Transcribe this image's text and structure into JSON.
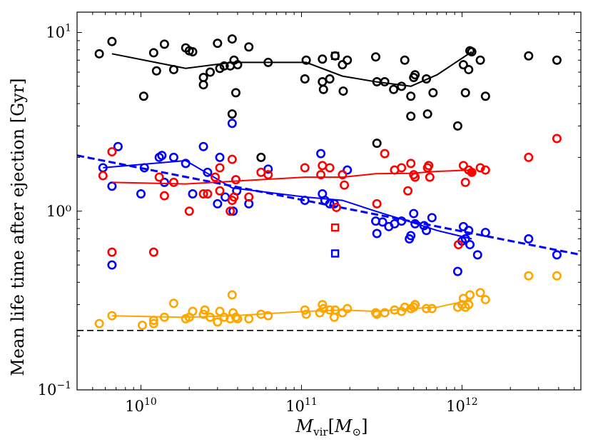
{
  "chart_data": {
    "type": "scatter",
    "xscale": "log",
    "yscale": "log",
    "xlim": [
      4000000000.0,
      5500000000000.0
    ],
    "ylim": [
      0.1,
      13
    ],
    "ylabel": "Mean life time after ejection [Gyr]",
    "xlabel": {
      "main": "M",
      "main_sub": "vir",
      "unit": "M",
      "unit_sub": "⊙"
    },
    "x_ticks": [
      {
        "value": 10000000000.0,
        "base": "10",
        "exp": "10"
      },
      {
        "value": 100000000000.0,
        "base": "10",
        "exp": "11"
      },
      {
        "value": 1000000000000.0,
        "base": "10",
        "exp": "12"
      }
    ],
    "y_ticks": [
      {
        "value": 0.1,
        "base": "10",
        "exp": "−1"
      },
      {
        "value": 1,
        "text": "10⁰"
      },
      {
        "value": 10,
        "base": "10",
        "exp": "1"
      }
    ],
    "reference_lines": [
      {
        "name": "horizontal-dashed",
        "type": "hline",
        "y": 0.215,
        "color": "#000000",
        "dash": "9,5"
      },
      {
        "name": "blue-dashed-fit",
        "type": "line",
        "points": [
          [
            4000000000.0,
            2.05
          ],
          [
            5500000000000.0,
            0.57
          ]
        ],
        "color": "#0000ff",
        "dash": "10,5"
      }
    ],
    "series": [
      {
        "name": "black",
        "color": "#000000",
        "points": [
          [
            5500000000.0,
            7.6
          ],
          [
            6600000000.0,
            8.9
          ],
          [
            10400000000.0,
            4.4
          ],
          [
            12000000000.0,
            7.7
          ],
          [
            12500000000.0,
            6.1
          ],
          [
            14000000000.0,
            8.6
          ],
          [
            16000000000.0,
            6.2
          ],
          [
            19000000000.0,
            8.2
          ],
          [
            20000000000.0,
            7.9
          ],
          [
            21000000000.0,
            7.8
          ],
          [
            24500000000.0,
            5.1
          ],
          [
            24500000000.0,
            5.6
          ],
          [
            27000000000.0,
            6.0
          ],
          [
            30000000000.0,
            8.7
          ],
          [
            31000000000.0,
            6.3
          ],
          [
            33000000000.0,
            6.5
          ],
          [
            36000000000.0,
            6.5
          ],
          [
            37000000000.0,
            9.2
          ],
          [
            38000000000.0,
            7.0
          ],
          [
            37000000000.0,
            3.5
          ],
          [
            39000000000.0,
            4.6
          ],
          [
            40000000000.0,
            6.6
          ],
          [
            47000000000.0,
            8.3
          ],
          [
            62000000000.0,
            6.8
          ],
          [
            105000000000.0,
            5.5
          ],
          [
            107000000000.0,
            7.0
          ],
          [
            135000000000.0,
            7.1
          ],
          [
            135000000000.0,
            5.3
          ],
          [
            137000000000.0,
            4.8
          ],
          [
            150000000000.0,
            5.5
          ],
          [
            162000000000.0,
            7.4
          ],
          [
            180000000000.0,
            6.6
          ],
          [
            182000000000.0,
            4.7
          ],
          [
            193000000000.0,
            7.0
          ],
          [
            290000000000.0,
            7.3
          ],
          [
            295000000000.0,
            5.3
          ],
          [
            330000000000.0,
            5.3
          ],
          [
            375000000000.0,
            4.8
          ],
          [
            420000000000.0,
            5.0
          ],
          [
            440000000000.0,
            7.0
          ],
          [
            480000000000.0,
            4.4
          ],
          [
            480000000000.0,
            3.4
          ],
          [
            500000000000.0,
            5.6
          ],
          [
            510000000000.0,
            5.8
          ],
          [
            600000000000.0,
            5.5
          ],
          [
            610000000000.0,
            3.5
          ],
          [
            660000000000.0,
            4.6
          ],
          [
            940000000000.0,
            3.0
          ],
          [
            1020000000000.0,
            6.6
          ],
          [
            1050000000000.0,
            4.6
          ],
          [
            1100000000000.0,
            6.2
          ],
          [
            1120000000000.0,
            7.9
          ],
          [
            1150000000000.0,
            7.8
          ],
          [
            1300000000000.0,
            7.0
          ],
          [
            1400000000000.0,
            4.4
          ],
          [
            2600000000000.0,
            7.4
          ],
          [
            3900000000000.0,
            7.0
          ],
          [
            295000000000.0,
            2.4
          ],
          [
            56000000000.0,
            2.0
          ]
        ],
        "squares": [
          [
            162000000000.0,
            7.4
          ]
        ],
        "median_line": [
          [
            6600000000.0,
            7.6
          ],
          [
            19000000000.0,
            6.3
          ],
          [
            37000000000.0,
            6.8
          ],
          [
            107000000000.0,
            6.8
          ],
          [
            180000000000.0,
            5.7
          ],
          [
            290000000000.0,
            5.3
          ],
          [
            480000000000.0,
            5.0
          ],
          [
            700000000000.0,
            5.8
          ],
          [
            1150000000000.0,
            7.8
          ]
        ]
      },
      {
        "name": "blue",
        "color": "#0000ff",
        "points": [
          [
            5800000000.0,
            1.75
          ],
          [
            6600000000.0,
            0.5
          ],
          [
            6600000000.0,
            1.38
          ],
          [
            7200000000.0,
            2.3
          ],
          [
            10000000000.0,
            1.25
          ],
          [
            10500000000.0,
            1.75
          ],
          [
            13000000000.0,
            2.0
          ],
          [
            13500000000.0,
            2.05
          ],
          [
            14000000000.0,
            1.45
          ],
          [
            16000000000.0,
            2.0
          ],
          [
            19000000000.0,
            1.85
          ],
          [
            21000000000.0,
            1.25
          ],
          [
            24500000000.0,
            2.3
          ],
          [
            26000000000.0,
            1.65
          ],
          [
            30000000000.0,
            1.1
          ],
          [
            31000000000.0,
            2.0
          ],
          [
            33500000000.0,
            1.2
          ],
          [
            37000000000.0,
            3.1
          ],
          [
            37500000000.0,
            1.0
          ],
          [
            39000000000.0,
            1.5
          ],
          [
            39500000000.0,
            1.3
          ],
          [
            47000000000.0,
            1.1
          ],
          [
            62000000000.0,
            1.72
          ],
          [
            105000000000.0,
            1.15
          ],
          [
            132000000000.0,
            2.1
          ],
          [
            135000000000.0,
            1.25
          ],
          [
            140000000000.0,
            1.15
          ],
          [
            150000000000.0,
            1.1
          ],
          [
            160000000000.0,
            1.1
          ],
          [
            193000000000.0,
            1.7
          ],
          [
            290000000000.0,
            0.88
          ],
          [
            295000000000.0,
            0.75
          ],
          [
            320000000000.0,
            0.87
          ],
          [
            350000000000.0,
            0.82
          ],
          [
            380000000000.0,
            0.85
          ],
          [
            420000000000.0,
            0.88
          ],
          [
            470000000000.0,
            0.7
          ],
          [
            480000000000.0,
            0.73
          ],
          [
            500000000000.0,
            0.97
          ],
          [
            510000000000.0,
            0.85
          ],
          [
            580000000000.0,
            0.83
          ],
          [
            600000000000.0,
            0.78
          ],
          [
            650000000000.0,
            0.92
          ],
          [
            940000000000.0,
            0.46
          ],
          [
            1000000000000.0,
            0.68
          ],
          [
            1020000000000.0,
            0.82
          ],
          [
            1050000000000.0,
            0.7
          ],
          [
            1100000000000.0,
            0.78
          ],
          [
            1120000000000.0,
            0.65
          ],
          [
            1250000000000.0,
            0.57
          ],
          [
            1400000000000.0,
            0.76
          ],
          [
            2600000000000.0,
            0.7
          ],
          [
            3900000000000.0,
            0.57
          ]
        ],
        "squares": [
          [
            162000000000.0,
            0.58
          ]
        ],
        "median_line": [
          [
            5800000000.0,
            1.75
          ],
          [
            19000000000.0,
            1.92
          ],
          [
            37000000000.0,
            1.35
          ],
          [
            105000000000.0,
            1.2
          ],
          [
            180000000000.0,
            1.15
          ],
          [
            290000000000.0,
            1.0
          ],
          [
            480000000000.0,
            0.87
          ],
          [
            700000000000.0,
            0.78
          ],
          [
            1150000000000.0,
            0.7
          ]
        ]
      },
      {
        "name": "red",
        "color": "#ff0000",
        "points": [
          [
            5800000000.0,
            1.58
          ],
          [
            6600000000.0,
            0.59
          ],
          [
            6600000000.0,
            2.15
          ],
          [
            12000000000.0,
            0.59
          ],
          [
            13000000000.0,
            1.55
          ],
          [
            14000000000.0,
            1.22
          ],
          [
            16000000000.0,
            1.45
          ],
          [
            20000000000.0,
            1.0
          ],
          [
            24500000000.0,
            1.25
          ],
          [
            26000000000.0,
            1.25
          ],
          [
            29000000000.0,
            1.55
          ],
          [
            31000000000.0,
            1.75
          ],
          [
            31000000000.0,
            1.3
          ],
          [
            36000000000.0,
            1.0
          ],
          [
            37000000000.0,
            1.15
          ],
          [
            37000000000.0,
            1.95
          ],
          [
            38000000000.0,
            1.2
          ],
          [
            39000000000.0,
            1.5
          ],
          [
            47000000000.0,
            1.2
          ],
          [
            56000000000.0,
            1.65
          ],
          [
            62000000000.0,
            1.6
          ],
          [
            105000000000.0,
            1.75
          ],
          [
            132000000000.0,
            1.6
          ],
          [
            135000000000.0,
            1.8
          ],
          [
            150000000000.0,
            1.75
          ],
          [
            165000000000.0,
            1.05
          ],
          [
            180000000000.0,
            1.6
          ],
          [
            185000000000.0,
            1.4
          ],
          [
            295000000000.0,
            1.1
          ],
          [
            330000000000.0,
            2.1
          ],
          [
            380000000000.0,
            1.7
          ],
          [
            420000000000.0,
            1.75
          ],
          [
            460000000000.0,
            1.3
          ],
          [
            480000000000.0,
            1.85
          ],
          [
            500000000000.0,
            1.6
          ],
          [
            510000000000.0,
            1.55
          ],
          [
            610000000000.0,
            1.75
          ],
          [
            620000000000.0,
            1.8
          ],
          [
            630000000000.0,
            1.55
          ],
          [
            950000000000.0,
            0.65
          ],
          [
            1020000000000.0,
            1.8
          ],
          [
            1050000000000.0,
            1.45
          ],
          [
            1100000000000.0,
            1.7
          ],
          [
            1150000000000.0,
            1.65
          ],
          [
            1300000000000.0,
            1.75
          ],
          [
            1400000000000.0,
            1.7
          ],
          [
            2600000000000.0,
            2.0
          ],
          [
            3900000000000.0,
            2.55
          ]
        ],
        "squares": [
          [
            162000000000.0,
            0.81
          ]
        ],
        "median_line": [
          [
            6600000000.0,
            1.45
          ],
          [
            19000000000.0,
            1.42
          ],
          [
            37000000000.0,
            1.47
          ],
          [
            105000000000.0,
            1.55
          ],
          [
            180000000000.0,
            1.55
          ],
          [
            290000000000.0,
            1.62
          ],
          [
            480000000000.0,
            1.63
          ],
          [
            700000000000.0,
            1.67
          ],
          [
            1150000000000.0,
            1.7
          ]
        ]
      },
      {
        "name": "orange",
        "color": "#ffa500",
        "points": [
          [
            5500000000.0,
            0.235
          ],
          [
            6600000000.0,
            0.26
          ],
          [
            10200000000.0,
            0.23
          ],
          [
            12000000000.0,
            0.245
          ],
          [
            12000000000.0,
            0.235
          ],
          [
            14000000000.0,
            0.255
          ],
          [
            16000000000.0,
            0.305
          ],
          [
            19000000000.0,
            0.25
          ],
          [
            20000000000.0,
            0.255
          ],
          [
            21000000000.0,
            0.275
          ],
          [
            24500000000.0,
            0.265
          ],
          [
            25000000000.0,
            0.28
          ],
          [
            27000000000.0,
            0.255
          ],
          [
            30000000000.0,
            0.24
          ],
          [
            31000000000.0,
            0.275
          ],
          [
            33000000000.0,
            0.255
          ],
          [
            36000000000.0,
            0.25
          ],
          [
            37000000000.0,
            0.34
          ],
          [
            37500000000.0,
            0.27
          ],
          [
            39000000000.0,
            0.255
          ],
          [
            40000000000.0,
            0.25
          ],
          [
            47000000000.0,
            0.25
          ],
          [
            56000000000.0,
            0.265
          ],
          [
            62000000000.0,
            0.26
          ],
          [
            105000000000.0,
            0.28
          ],
          [
            107000000000.0,
            0.265
          ],
          [
            130000000000.0,
            0.27
          ],
          [
            135000000000.0,
            0.3
          ],
          [
            137000000000.0,
            0.285
          ],
          [
            150000000000.0,
            0.28
          ],
          [
            160000000000.0,
            0.255
          ],
          [
            162000000000.0,
            0.28
          ],
          [
            180000000000.0,
            0.27
          ],
          [
            193000000000.0,
            0.285
          ],
          [
            290000000000.0,
            0.27
          ],
          [
            295000000000.0,
            0.265
          ],
          [
            330000000000.0,
            0.27
          ],
          [
            380000000000.0,
            0.28
          ],
          [
            420000000000.0,
            0.275
          ],
          [
            440000000000.0,
            0.29
          ],
          [
            480000000000.0,
            0.285
          ],
          [
            500000000000.0,
            0.29
          ],
          [
            510000000000.0,
            0.3
          ],
          [
            600000000000.0,
            0.285
          ],
          [
            650000000000.0,
            0.285
          ],
          [
            940000000000.0,
            0.29
          ],
          [
            1000000000000.0,
            0.3
          ],
          [
            1020000000000.0,
            0.325
          ],
          [
            1050000000000.0,
            0.29
          ],
          [
            1100000000000.0,
            0.3
          ],
          [
            1120000000000.0,
            0.34
          ],
          [
            1300000000000.0,
            0.35
          ],
          [
            1400000000000.0,
            0.32
          ],
          [
            2600000000000.0,
            0.435
          ],
          [
            3900000000000.0,
            0.435
          ]
        ],
        "squares": [],
        "median_line": [
          [
            6600000000.0,
            0.26
          ],
          [
            19000000000.0,
            0.255
          ],
          [
            37000000000.0,
            0.26
          ],
          [
            105000000000.0,
            0.275
          ],
          [
            180000000000.0,
            0.28
          ],
          [
            290000000000.0,
            0.275
          ],
          [
            480000000000.0,
            0.285
          ],
          [
            700000000000.0,
            0.29
          ],
          [
            1150000000000.0,
            0.32
          ]
        ]
      }
    ],
    "highlight_points": [
      {
        "x": 1150000000000.0,
        "y": 1.65,
        "color": "#ff0000"
      }
    ]
  }
}
